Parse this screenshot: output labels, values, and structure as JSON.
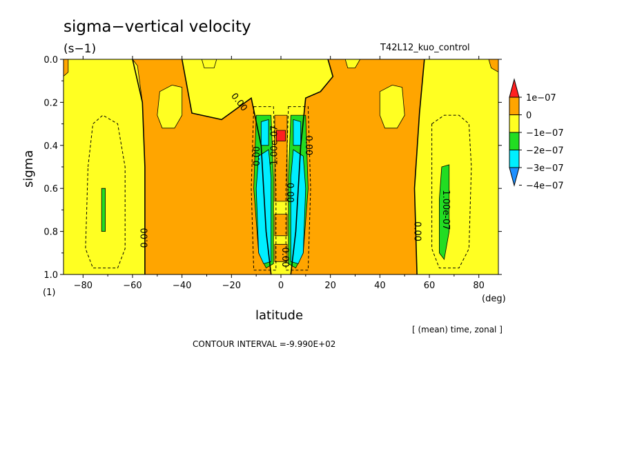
{
  "header": {
    "title": "sigma−vertical velocity",
    "units": "(s−1)",
    "run_name": "T42L12_kuo_control"
  },
  "footer": {
    "averaging": "[ (mean) time, zonal ]",
    "contour_interval": "CONTOUR INTERVAL =-9.990E+02"
  },
  "chart_data": {
    "type": "heatmap",
    "xlabel": "latitude",
    "x_unit": "(deg)",
    "ylabel": "sigma",
    "y_unit": "(1)",
    "xlim": [
      -87.9,
      87.9
    ],
    "ylim": [
      1.0,
      0.0
    ],
    "x_ticks": [
      -80,
      -60,
      -40,
      -20,
      0,
      20,
      40,
      60,
      80
    ],
    "x_tick_labels": [
      "−80",
      "−60",
      "−40",
      "−20",
      "0",
      "20",
      "40",
      "60",
      "80"
    ],
    "y_ticks": [
      0.0,
      0.2,
      0.4,
      0.6,
      0.8,
      1.0
    ],
    "y_tick_labels": [
      "0.0",
      "0.2",
      "0.4",
      "0.6",
      "0.8",
      "1.0"
    ],
    "colorbar": {
      "levels": [
        1e-07,
        0,
        -1e-07,
        -2e-07,
        -3e-07,
        -4e-07
      ],
      "labels": [
        "1e−07",
        "0",
        "−1e−07",
        "−2e−07",
        "−3e−07",
        "−4e−07"
      ],
      "colors": [
        "#ff2020",
        "#ffa500",
        "#ffff22",
        "#22dd22",
        "#00eeff",
        "#1e90ff"
      ]
    },
    "background_color": "#ffff22",
    "regions": [
      {
        "level": "0 to 1e-07",
        "color": "#ffa500",
        "points": [
          [
            -60,
            0
          ],
          [
            -40,
            0
          ],
          [
            -36,
            0.25
          ],
          [
            -24,
            0.28
          ],
          [
            -12,
            0.18
          ],
          [
            -8,
            0.4
          ],
          [
            -6,
            0.8
          ],
          [
            -4,
            1.0
          ],
          [
            -55,
            1.0
          ],
          [
            -55,
            0.5
          ],
          [
            -56,
            0.2
          ],
          [
            -58,
            0.03
          ]
        ]
      },
      {
        "level": "0 to 1e-07",
        "color": "#ffa500",
        "points": [
          [
            19,
            0
          ],
          [
            31,
            0
          ],
          [
            48,
            0
          ],
          [
            58,
            0
          ],
          [
            56,
            0.25
          ],
          [
            54,
            0.6
          ],
          [
            55,
            1.0
          ],
          [
            4,
            1.0
          ],
          [
            6,
            0.8
          ],
          [
            8,
            0.4
          ],
          [
            10,
            0.18
          ],
          [
            16,
            0.15
          ],
          [
            21,
            0.08
          ]
        ]
      },
      {
        "level": "0 to 1e-07",
        "color": "#ffa500",
        "points": [
          [
            -88,
            0
          ],
          [
            -86,
            0
          ],
          [
            -86,
            0.06
          ],
          [
            -88,
            0.08
          ]
        ]
      },
      {
        "level": "0 to 1e-07",
        "color": "#ffa500",
        "points": [
          [
            84,
            0
          ],
          [
            88,
            0
          ],
          [
            88,
            0.06
          ],
          [
            85,
            0.04
          ]
        ]
      },
      {
        "level": "0 to 1e-07",
        "color": "#ffa500",
        "points": [
          [
            -2.5,
            0.26
          ],
          [
            2.5,
            0.26
          ],
          [
            2.5,
            0.66
          ],
          [
            -2.5,
            0.66
          ]
        ]
      },
      {
        "level": "0 to 1e-07",
        "color": "#ffa500",
        "points": [
          [
            -2.5,
            0.72
          ],
          [
            2.5,
            0.72
          ],
          [
            2.5,
            0.82
          ],
          [
            -2.5,
            0.82
          ]
        ]
      },
      {
        "level": "0 to 1e-07",
        "color": "#ffa500",
        "points": [
          [
            -2.5,
            0.86
          ],
          [
            2.5,
            0.86
          ],
          [
            2.5,
            0.94
          ],
          [
            -2.5,
            0.94
          ]
        ]
      },
      {
        "level": "-1e-07 to 0",
        "color": "#ffff22",
        "points": [
          [
            -49,
            0.15
          ],
          [
            -44,
            0.12
          ],
          [
            -40,
            0.13
          ],
          [
            -40,
            0.26
          ],
          [
            -43,
            0.32
          ],
          [
            -48,
            0.32
          ],
          [
            -50,
            0.26
          ]
        ]
      },
      {
        "level": "-1e-07 to 0",
        "color": "#ffff22",
        "points": [
          [
            40,
            0.15
          ],
          [
            45,
            0.12
          ],
          [
            49,
            0.13
          ],
          [
            50,
            0.26
          ],
          [
            47,
            0.32
          ],
          [
            42,
            0.32
          ],
          [
            40,
            0.26
          ]
        ]
      },
      {
        "level": "-1e-07 to 0",
        "color": "#ffff22",
        "points": [
          [
            -32,
            0
          ],
          [
            -26,
            0
          ],
          [
            -27,
            0.04
          ],
          [
            -31,
            0.04
          ]
        ]
      },
      {
        "level": "-1e-07 to 0",
        "color": "#ffff22",
        "points": [
          [
            26,
            0
          ],
          [
            32,
            0
          ],
          [
            30,
            0.04
          ],
          [
            27,
            0.04
          ]
        ]
      },
      {
        "level": "-2e-07 to -1e-07",
        "color": "#22dd22",
        "points": [
          [
            -10,
            0.26
          ],
          [
            -4,
            0.26
          ],
          [
            -3,
            0.55
          ],
          [
            -3,
            0.95
          ],
          [
            -6,
            0.97
          ],
          [
            -9,
            0.9
          ],
          [
            -11,
            0.6
          ]
        ]
      },
      {
        "level": "-2e-07 to -1e-07",
        "color": "#22dd22",
        "points": [
          [
            4,
            0.26
          ],
          [
            10,
            0.26
          ],
          [
            11,
            0.6
          ],
          [
            9,
            0.9
          ],
          [
            6,
            0.97
          ],
          [
            3,
            0.95
          ],
          [
            3,
            0.55
          ]
        ]
      },
      {
        "level": "-2e-07 to -1e-07",
        "color": "#22dd22",
        "points": [
          [
            65,
            0.5
          ],
          [
            68,
            0.49
          ],
          [
            68,
            0.8
          ],
          [
            66,
            0.93
          ],
          [
            64,
            0.9
          ],
          [
            64,
            0.65
          ]
        ]
      },
      {
        "level": "-2e-07 to -1e-07",
        "color": "#22dd22",
        "points": [
          [
            -72.5,
            0.6
          ],
          [
            -71,
            0.6
          ],
          [
            -71,
            0.8
          ],
          [
            -72.5,
            0.8
          ]
        ]
      },
      {
        "level": "-3e-07 to -2e-07",
        "color": "#00eeff",
        "points": [
          [
            -9,
            0.45
          ],
          [
            -5,
            0.42
          ],
          [
            -4,
            0.55
          ],
          [
            -4,
            0.94
          ],
          [
            -7,
            0.95
          ],
          [
            -9,
            0.9
          ],
          [
            -10,
            0.6
          ]
        ]
      },
      {
        "level": "-3e-07 to -2e-07",
        "color": "#00eeff",
        "points": [
          [
            5,
            0.42
          ],
          [
            9,
            0.45
          ],
          [
            10,
            0.6
          ],
          [
            9,
            0.9
          ],
          [
            7,
            0.95
          ],
          [
            4,
            0.94
          ],
          [
            4,
            0.55
          ]
        ]
      },
      {
        "level": "-3e-07 to -2e-07",
        "color": "#00eeff",
        "points": [
          [
            -8,
            0.29
          ],
          [
            -5,
            0.28
          ],
          [
            -5,
            0.4
          ],
          [
            -8,
            0.4
          ]
        ]
      },
      {
        "level": "-3e-07 to -2e-07",
        "color": "#00eeff",
        "points": [
          [
            5,
            0.28
          ],
          [
            8,
            0.29
          ],
          [
            8,
            0.4
          ],
          [
            5,
            0.4
          ]
        ]
      },
      {
        "level": "> 1e-07",
        "color": "#ff2020",
        "points": [
          [
            -1.8,
            0.33
          ],
          [
            1.8,
            0.33
          ],
          [
            1.8,
            0.38
          ],
          [
            -1.8,
            0.38
          ]
        ]
      }
    ],
    "contour_lines": [
      {
        "value": "0.00",
        "style": "solid",
        "points": [
          [
            -60,
            0
          ],
          [
            -56,
            0.2
          ],
          [
            -55,
            0.5
          ],
          [
            -55,
            1.0
          ]
        ]
      },
      {
        "value": "0.00",
        "style": "solid",
        "points": [
          [
            58,
            0
          ],
          [
            56,
            0.25
          ],
          [
            54,
            0.6
          ],
          [
            55,
            1.0
          ]
        ]
      },
      {
        "value": "0.00",
        "style": "solid",
        "points": [
          [
            -40,
            0
          ],
          [
            -36,
            0.25
          ],
          [
            -24,
            0.28
          ],
          [
            -12,
            0.18
          ],
          [
            -8,
            0.4
          ],
          [
            -6,
            0.8
          ],
          [
            -4,
            1.0
          ]
        ]
      },
      {
        "value": "0.00",
        "style": "solid",
        "points": [
          [
            19,
            0
          ],
          [
            21,
            0.08
          ],
          [
            16,
            0.15
          ],
          [
            10,
            0.18
          ],
          [
            8,
            0.4
          ],
          [
            6,
            0.8
          ],
          [
            4,
            1.0
          ]
        ]
      },
      {
        "value": "-1e-07",
        "style": "dashed",
        "points": [
          [
            -78,
            0.5
          ],
          [
            -76,
            0.3
          ],
          [
            -72,
            0.26
          ],
          [
            -66,
            0.3
          ],
          [
            -63,
            0.5
          ],
          [
            -63,
            0.88
          ],
          [
            -66,
            0.97
          ],
          [
            -76,
            0.97
          ],
          [
            -79,
            0.88
          ]
        ]
      },
      {
        "value": "-1e-07",
        "style": "dashed",
        "points": [
          [
            61,
            0.3
          ],
          [
            66,
            0.26
          ],
          [
            72,
            0.26
          ],
          [
            76,
            0.3
          ],
          [
            77,
            0.5
          ],
          [
            76,
            0.88
          ],
          [
            72,
            0.97
          ],
          [
            64,
            0.97
          ],
          [
            61,
            0.88
          ]
        ]
      },
      {
        "value": "-1e-07",
        "style": "dashed",
        "points": [
          [
            -11,
            0.22
          ],
          [
            -3,
            0.22
          ],
          [
            -2,
            0.6
          ],
          [
            -2,
            0.98
          ],
          [
            -11,
            0.98
          ],
          [
            -12,
            0.6
          ]
        ]
      },
      {
        "value": "-1e-07",
        "style": "dashed",
        "points": [
          [
            3,
            0.22
          ],
          [
            11,
            0.22
          ],
          [
            12,
            0.6
          ],
          [
            11,
            0.98
          ],
          [
            2,
            0.98
          ],
          [
            2,
            0.6
          ]
        ]
      }
    ],
    "contour_labels": [
      "0.00",
      "0.00",
      "0.00",
      "0.00",
      "0.00",
      "0.00",
      "1.00e-07",
      "1.00e-07",
      "0.00"
    ]
  }
}
